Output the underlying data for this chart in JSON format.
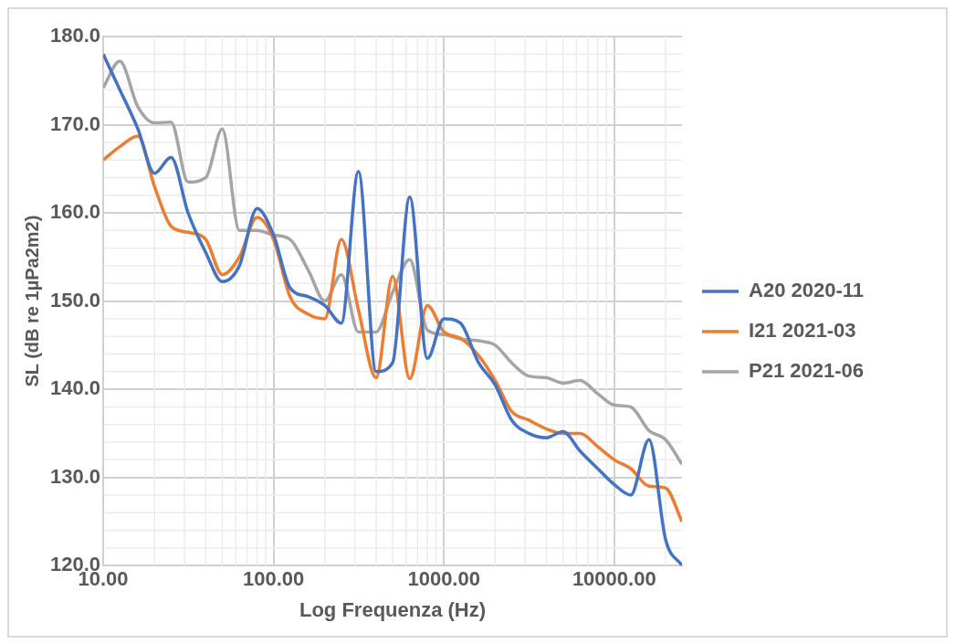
{
  "chart_data": {
    "type": "line",
    "xlabel": "Log Frequenza (Hz)",
    "ylabel": "SL (dB re 1µPa2m2)",
    "x": [
      10,
      12.5,
      16,
      20,
      25,
      31.5,
      40,
      50,
      63,
      80,
      100,
      125,
      160,
      200,
      250,
      315,
      400,
      500,
      630,
      800,
      1000,
      1250,
      1600,
      2000,
      2500,
      3150,
      4000,
      5000,
      6300,
      8000,
      10000,
      12500,
      16000,
      20000,
      25000
    ],
    "series": [
      {
        "name": "A20 2020-11",
        "color": "#4472c4",
        "values": [
          178,
          174,
          169.5,
          164.5,
          166.3,
          160,
          155.5,
          152.2,
          154,
          160.5,
          157.5,
          151.5,
          150.5,
          149.5,
          147.5,
          164.7,
          142,
          143,
          161.8,
          143.5,
          148,
          147.5,
          143,
          140.5,
          136.5,
          135,
          134.5,
          135.2,
          133,
          131,
          129.2,
          128,
          134.3,
          123,
          120
        ]
      },
      {
        "name": "I21 2021-03",
        "color": "#ed7d31",
        "values": [
          166,
          167.5,
          168.7,
          163,
          158.5,
          157.8,
          157,
          153,
          155,
          159.5,
          157,
          150.5,
          148.5,
          148,
          157,
          149,
          141.3,
          152.8,
          141.2,
          149.5,
          146.5,
          145.8,
          143.8,
          141,
          137.5,
          136.5,
          135.5,
          135,
          135,
          133.5,
          132,
          131,
          129,
          128.8,
          125
        ]
      },
      {
        "name": "P21 2021-06",
        "color": "#a5a5a5",
        "values": [
          174.2,
          177.2,
          172,
          170.2,
          170.3,
          163.5,
          164,
          169.5,
          158,
          158,
          157.5,
          157,
          153.5,
          150,
          153,
          146.5,
          146.5,
          151,
          154.7,
          146.7,
          146.2,
          145.7,
          145.5,
          145,
          143,
          141.5,
          141.3,
          140.7,
          141,
          139.5,
          138.2,
          138,
          135.3,
          134.3,
          131.5
        ]
      }
    ],
    "log": "x",
    "xlim": [
      10,
      25000
    ],
    "xticks": [
      {
        "value": 10,
        "label": "10.00"
      },
      {
        "value": 100,
        "label": "100.00"
      },
      {
        "value": 1000,
        "label": "1000.00"
      },
      {
        "value": 10000,
        "label": "10000.00"
      }
    ],
    "ylim": [
      120,
      180
    ],
    "yticks": [
      {
        "value": 120,
        "label": "120.0"
      },
      {
        "value": 130,
        "label": "130.0"
      },
      {
        "value": 140,
        "label": "140.0"
      },
      {
        "value": 150,
        "label": "150.0"
      },
      {
        "value": 160,
        "label": "160.0"
      },
      {
        "value": 170,
        "label": "170.0"
      },
      {
        "value": 180,
        "label": "180.0"
      }
    ],
    "grid": true,
    "legend": "right",
    "marker": "none",
    "line_style": "solid"
  }
}
